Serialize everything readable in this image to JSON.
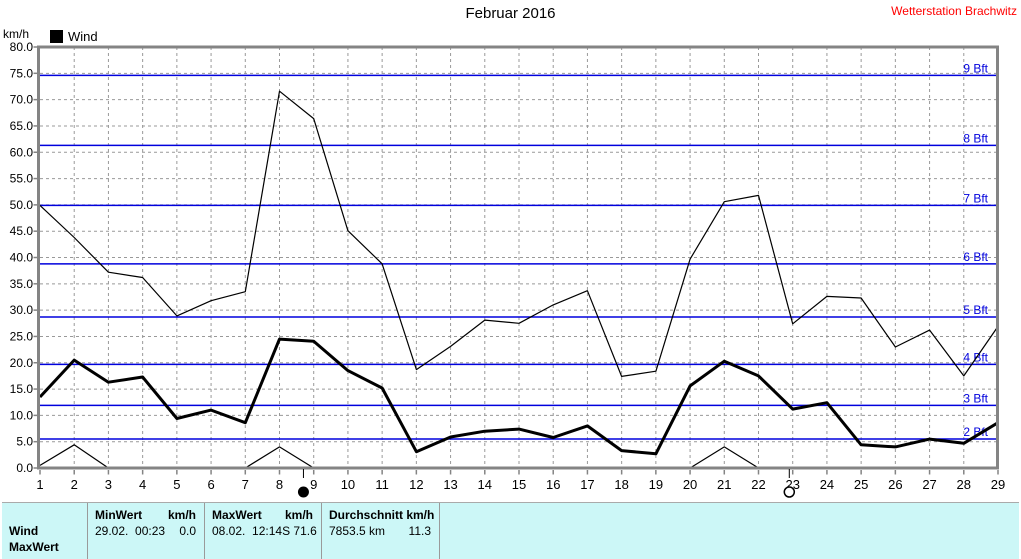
{
  "header": {
    "title": "Februar 2016",
    "station": "Wetterstation Brachwitz"
  },
  "legend": {
    "label": "Wind",
    "unit": "km/h"
  },
  "chart_data": {
    "type": "line",
    "title": "Februar 2016",
    "station": "Wetterstation Brachwitz",
    "ylabel": "km/h",
    "xlabel": "",
    "x_days": [
      1,
      2,
      3,
      4,
      5,
      6,
      7,
      8,
      9,
      10,
      11,
      12,
      13,
      14,
      15,
      16,
      17,
      18,
      19,
      20,
      21,
      22,
      23,
      24,
      25,
      26,
      27,
      28,
      29
    ],
    "ylim": [
      0,
      80
    ],
    "ytick_step": 5,
    "grid": true,
    "series": [
      {
        "name": "wind-average",
        "label": "Wind",
        "line": "thick",
        "values": [
          13.5,
          20.5,
          16.3,
          17.3,
          9.4,
          11.0,
          8.6,
          24.5,
          24.1,
          18.5,
          15.2,
          3.1,
          5.9,
          7.0,
          7.4,
          5.8,
          8.0,
          3.3,
          2.7,
          15.6,
          20.3,
          17.5,
          11.2,
          12.4,
          4.4,
          4.0,
          5.5,
          4.7,
          8.6
        ]
      },
      {
        "name": "wind-max-gust",
        "label": "",
        "line": "thin",
        "values": [
          49.9,
          43.8,
          37.2,
          36.2,
          28.9,
          31.8,
          33.5,
          71.6,
          66.4,
          45.1,
          38.8,
          18.7,
          23.1,
          28.1,
          27.5,
          31.0,
          33.7,
          17.4,
          18.4,
          39.7,
          50.6,
          51.8,
          27.4,
          32.6,
          32.3,
          23.0,
          26.2,
          17.5,
          26.9
        ]
      },
      {
        "name": "wind-min",
        "label": "",
        "line": "thin",
        "values": [
          0.5,
          4.4,
          0,
          0,
          0,
          0,
          0,
          4.0,
          0,
          0,
          0,
          0,
          0,
          0,
          0,
          0,
          0,
          0,
          0,
          0,
          4.0,
          0,
          0,
          0,
          0,
          0,
          0,
          0,
          0
        ]
      }
    ],
    "beaufort_lines": [
      {
        "label": "2 Bft",
        "kmh": 5.5
      },
      {
        "label": "3 Bft",
        "kmh": 11.9
      },
      {
        "label": "4 Bft",
        "kmh": 19.7
      },
      {
        "label": "5 Bft",
        "kmh": 28.7
      },
      {
        "label": "6 Bft",
        "kmh": 38.8
      },
      {
        "label": "7 Bft",
        "kmh": 49.9
      },
      {
        "label": "8 Bft",
        "kmh": 61.3
      },
      {
        "label": "9 Bft",
        "kmh": 74.6
      }
    ],
    "moon_markers": [
      {
        "symbol": "new-moon",
        "day": 8.7
      },
      {
        "symbol": "full-moon",
        "day": 22.9
      }
    ],
    "colors": {
      "series": "#000000",
      "beaufort": "#0000dd",
      "grid": "#999999",
      "frame": "#848484",
      "station_label": "#ff0000",
      "table_bg": "#ccf7f7"
    }
  },
  "table": {
    "row_label": "Wind",
    "partial_row_label": "MaxWert",
    "min": {
      "header": "MinWert",
      "header_unit": "km/h",
      "datetime": "29.02.  00:23",
      "value": "0.0"
    },
    "max": {
      "header": "MaxWert",
      "header_unit": "km/h",
      "datetime": "08.02.  12:14",
      "value": "S 71.6"
    },
    "avg": {
      "header": "Durchschnitt km/h",
      "distance": "7853.5 km",
      "value": "11.3"
    }
  }
}
